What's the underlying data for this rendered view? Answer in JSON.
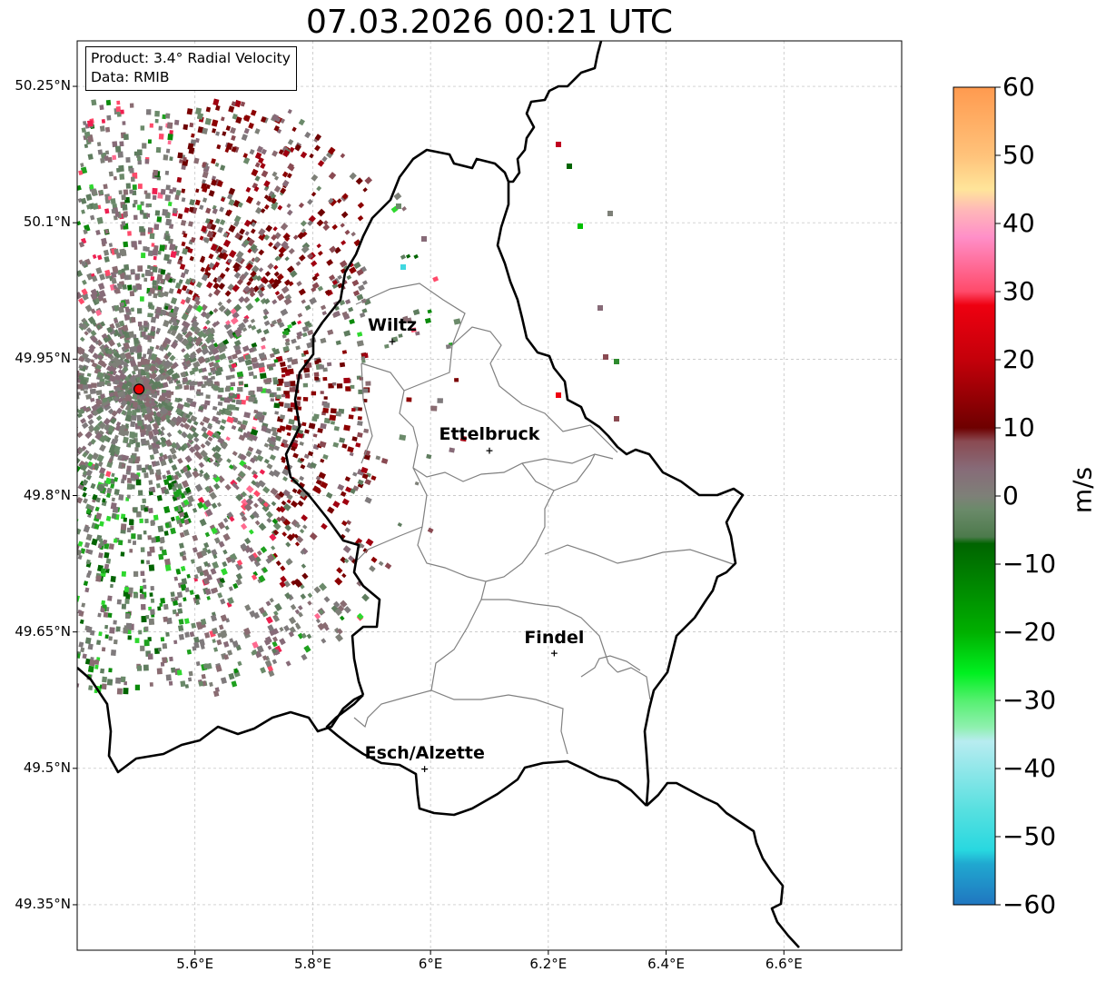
{
  "title": "07.03.2026 00:21 UTC",
  "info": {
    "product": "Product: 3.4° Radial Velocity",
    "source": "Data: RMIB"
  },
  "axes": {
    "lat_labels": [
      "50.25°N",
      "50.1°N",
      "49.95°N",
      "49.8°N",
      "49.65°N",
      "49.5°N",
      "49.35°N"
    ],
    "lon_labels": [
      "5.6°E",
      "5.8°E",
      "6°E",
      "6.2°E",
      "6.4°E",
      "6.6°E"
    ],
    "lat_range": [
      49.3,
      50.3
    ],
    "lon_range": [
      5.4,
      6.8
    ]
  },
  "cities": [
    {
      "name": "Wiltz",
      "lat": 49.97,
      "lon": 5.935
    },
    {
      "name": "Ettelbruck",
      "lat": 49.85,
      "lon": 6.1
    },
    {
      "name": "Findel",
      "lat": 49.627,
      "lon": 6.21
    },
    {
      "name": "Esch/Alzette",
      "lat": 49.5,
      "lon": 5.99
    }
  ],
  "radar_site": {
    "lat": 49.917,
    "lon": 5.505
  },
  "colorbar": {
    "label": "m/s",
    "ticks": [
      "60",
      "50",
      "40",
      "30",
      "20",
      "10",
      "0",
      "−10",
      "−20",
      "−30",
      "−40",
      "−50",
      "−60"
    ],
    "min": -60,
    "max": 60,
    "stops": [
      {
        "v": 60,
        "c": "#ff9a4f"
      },
      {
        "v": 50,
        "c": "#ffc27a"
      },
      {
        "v": 45,
        "c": "#ffe59a"
      },
      {
        "v": 42,
        "c": "#ffb8b8"
      },
      {
        "v": 38,
        "c": "#ff8fc8"
      },
      {
        "v": 30,
        "c": "#ff4a6a"
      },
      {
        "v": 28,
        "c": "#ee0010"
      },
      {
        "v": 20,
        "c": "#c4000a"
      },
      {
        "v": 10,
        "c": "#6e0000"
      },
      {
        "v": 8,
        "c": "#8a4a52"
      },
      {
        "v": 4,
        "c": "#876b78"
      },
      {
        "v": 0,
        "c": "#7e8078"
      },
      {
        "v": -2,
        "c": "#6b8a6a"
      },
      {
        "v": -6,
        "c": "#4c7a4c"
      },
      {
        "v": -7,
        "c": "#006400"
      },
      {
        "v": -20,
        "c": "#00b000"
      },
      {
        "v": -26,
        "c": "#00f020"
      },
      {
        "v": -30,
        "c": "#55f070"
      },
      {
        "v": -34,
        "c": "#90f0b0"
      },
      {
        "v": -36,
        "c": "#b8ecf0"
      },
      {
        "v": -46,
        "c": "#58e0e0"
      },
      {
        "v": -52,
        "c": "#28d8e0"
      },
      {
        "v": -54,
        "c": "#20a8d0"
      },
      {
        "v": -60,
        "c": "#2076c0"
      }
    ]
  }
}
